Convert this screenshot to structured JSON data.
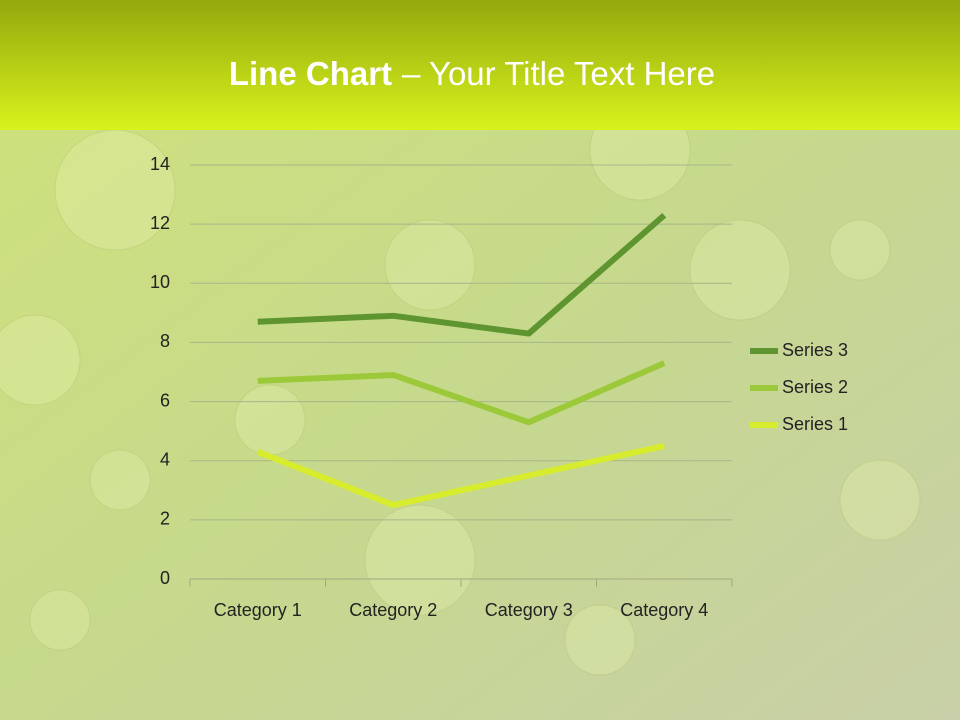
{
  "chart_data": {
    "type": "line",
    "stacked": true,
    "title": {
      "bold": "Line Chart",
      "rest": "– Your Title Text Here"
    },
    "categories": [
      "Category 1",
      "Category 2",
      "Category 3",
      "Category 4"
    ],
    "series": [
      {
        "name": "Series 1",
        "color": "#d6ec2c",
        "values": [
          4.3,
          2.5,
          3.5,
          4.5
        ]
      },
      {
        "name": "Series 2",
        "color": "#9cc93a",
        "values": [
          2.4,
          4.4,
          1.8,
          2.8
        ]
      },
      {
        "name": "Series 3",
        "color": "#5f9530",
        "values": [
          2,
          2,
          3,
          5
        ]
      }
    ],
    "ylim": [
      0,
      14
    ],
    "yticks": [
      0,
      2,
      4,
      6,
      8,
      10,
      12,
      14
    ],
    "grid": true,
    "legend": "right"
  }
}
